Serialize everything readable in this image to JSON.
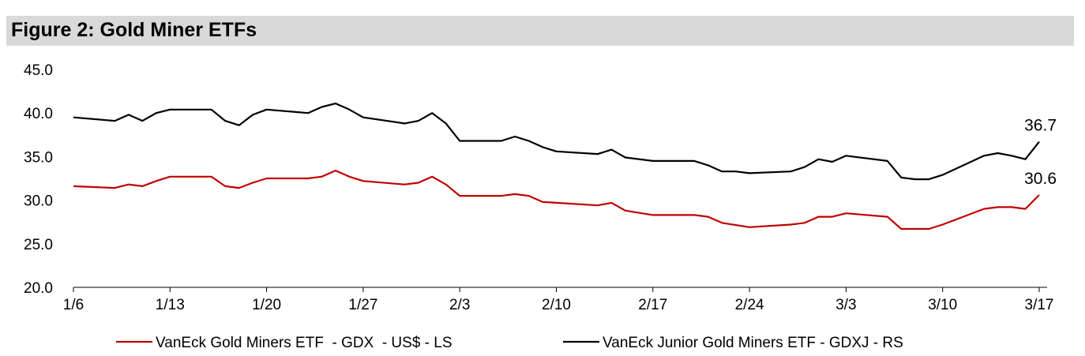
{
  "chart_data": {
    "type": "line",
    "title": "Figure 2: Gold Miner ETFs",
    "xlabel": "",
    "ylabel": "",
    "ylim": [
      20,
      45
    ],
    "yticks": [
      "20.0",
      "25.0",
      "30.0",
      "35.0",
      "40.0",
      "45.0"
    ],
    "xlim_days": [
      0,
      70
    ],
    "xticks": [
      {
        "day": 0,
        "label": "1/6"
      },
      {
        "day": 7,
        "label": "1/13"
      },
      {
        "day": 14,
        "label": "1/20"
      },
      {
        "day": 21,
        "label": "1/27"
      },
      {
        "day": 28,
        "label": "2/3"
      },
      {
        "day": 35,
        "label": "2/10"
      },
      {
        "day": 42,
        "label": "2/17"
      },
      {
        "day": 49,
        "label": "2/24"
      },
      {
        "day": 56,
        "label": "3/3"
      },
      {
        "day": 63,
        "label": "3/10"
      },
      {
        "day": 70,
        "label": "3/17"
      }
    ],
    "grid": false,
    "legend_position": "bottom",
    "series": [
      {
        "name": "VanEck Gold Miners ETF  - GDX  - US$ - LS",
        "color": "#c00000",
        "end_label": "30.6",
        "points": [
          [
            0,
            31.6
          ],
          [
            3,
            31.4
          ],
          [
            4,
            31.8
          ],
          [
            5,
            31.6
          ],
          [
            6,
            32.2
          ],
          [
            7,
            32.7
          ],
          [
            10,
            32.7
          ],
          [
            11,
            31.6
          ],
          [
            12,
            31.4
          ],
          [
            13,
            32.0
          ],
          [
            14,
            32.5
          ],
          [
            17,
            32.5
          ],
          [
            18,
            32.7
          ],
          [
            19,
            33.4
          ],
          [
            20,
            32.7
          ],
          [
            21,
            32.2
          ],
          [
            24,
            31.8
          ],
          [
            25,
            32.0
          ],
          [
            26,
            32.7
          ],
          [
            27,
            31.8
          ],
          [
            28,
            30.5
          ],
          [
            31,
            30.5
          ],
          [
            32,
            30.7
          ],
          [
            33,
            30.5
          ],
          [
            34,
            29.8
          ],
          [
            35,
            29.7
          ],
          [
            38,
            29.4
          ],
          [
            39,
            29.7
          ],
          [
            40,
            28.8
          ],
          [
            42,
            28.3
          ],
          [
            45,
            28.3
          ],
          [
            46,
            28.1
          ],
          [
            47,
            27.4
          ],
          [
            49,
            26.9
          ],
          [
            52,
            27.2
          ],
          [
            53,
            27.4
          ],
          [
            54,
            28.1
          ],
          [
            55,
            28.1
          ],
          [
            56,
            28.5
          ],
          [
            59,
            28.1
          ],
          [
            60,
            26.7
          ],
          [
            62,
            26.7
          ],
          [
            63,
            27.2
          ],
          [
            66,
            29.0
          ],
          [
            67,
            29.2
          ],
          [
            68,
            29.2
          ],
          [
            69,
            29.0
          ],
          [
            70,
            30.6
          ]
        ]
      },
      {
        "name": "VanEck Junior Gold Miners ETF - GDXJ - RS",
        "color": "#000000",
        "end_label": "36.7",
        "points": [
          [
            0,
            39.5
          ],
          [
            3,
            39.1
          ],
          [
            4,
            39.8
          ],
          [
            5,
            39.1
          ],
          [
            6,
            40.0
          ],
          [
            7,
            40.4
          ],
          [
            10,
            40.4
          ],
          [
            11,
            39.1
          ],
          [
            12,
            38.6
          ],
          [
            13,
            39.8
          ],
          [
            14,
            40.4
          ],
          [
            17,
            40.0
          ],
          [
            18,
            40.7
          ],
          [
            19,
            41.1
          ],
          [
            20,
            40.4
          ],
          [
            21,
            39.5
          ],
          [
            24,
            38.8
          ],
          [
            25,
            39.1
          ],
          [
            26,
            40.0
          ],
          [
            27,
            38.8
          ],
          [
            28,
            36.8
          ],
          [
            31,
            36.8
          ],
          [
            32,
            37.3
          ],
          [
            33,
            36.8
          ],
          [
            34,
            36.1
          ],
          [
            35,
            35.6
          ],
          [
            38,
            35.3
          ],
          [
            39,
            35.8
          ],
          [
            40,
            34.9
          ],
          [
            42,
            34.5
          ],
          [
            45,
            34.5
          ],
          [
            46,
            34.0
          ],
          [
            47,
            33.3
          ],
          [
            48,
            33.3
          ],
          [
            49,
            33.1
          ],
          [
            52,
            33.3
          ],
          [
            53,
            33.8
          ],
          [
            54,
            34.7
          ],
          [
            55,
            34.4
          ],
          [
            56,
            35.1
          ],
          [
            59,
            34.5
          ],
          [
            60,
            32.6
          ],
          [
            61,
            32.4
          ],
          [
            62,
            32.4
          ],
          [
            63,
            32.9
          ],
          [
            66,
            35.1
          ],
          [
            67,
            35.4
          ],
          [
            68,
            35.1
          ],
          [
            69,
            34.7
          ],
          [
            70,
            36.7
          ]
        ]
      }
    ]
  }
}
